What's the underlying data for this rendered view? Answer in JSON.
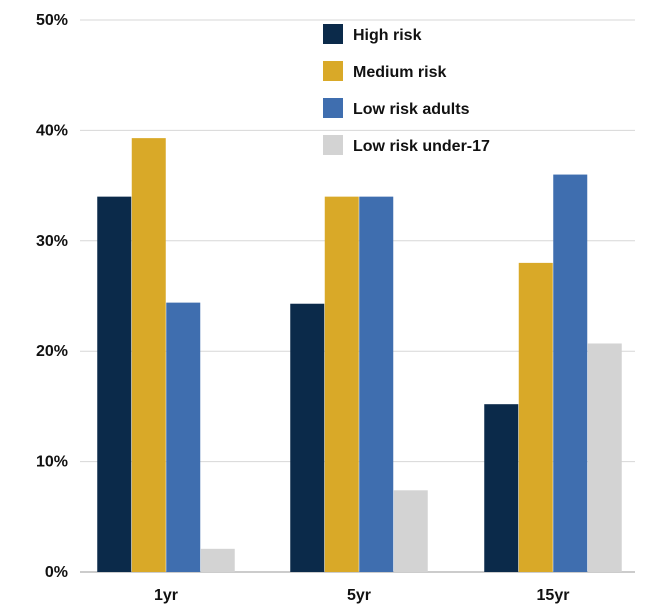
{
  "chart_data": {
    "type": "bar",
    "categories": [
      "1yr",
      "5yr",
      "15yr"
    ],
    "series": [
      {
        "name": "High risk",
        "color": "#0b2a4a",
        "values": [
          34,
          24.3,
          15.2
        ]
      },
      {
        "name": "Medium risk",
        "color": "#d9a928",
        "values": [
          39.3,
          34,
          28
        ]
      },
      {
        "name": "Low risk adults",
        "color": "#3f6eaf",
        "values": [
          24.4,
          34,
          36
        ]
      },
      {
        "name": "Low risk under-17",
        "color": "#d3d3d3",
        "values": [
          2.1,
          7.4,
          20.7
        ]
      }
    ],
    "ylim": [
      0,
      50
    ],
    "yticks": [
      {
        "value": 0,
        "label": "0%"
      },
      {
        "value": 10,
        "label": "10%"
      },
      {
        "value": 20,
        "label": "20%"
      },
      {
        "value": 30,
        "label": "30%"
      },
      {
        "value": 40,
        "label": "40%"
      },
      {
        "value": 50,
        "label": "50%"
      }
    ],
    "grid": true,
    "legend_position": "top-right"
  }
}
